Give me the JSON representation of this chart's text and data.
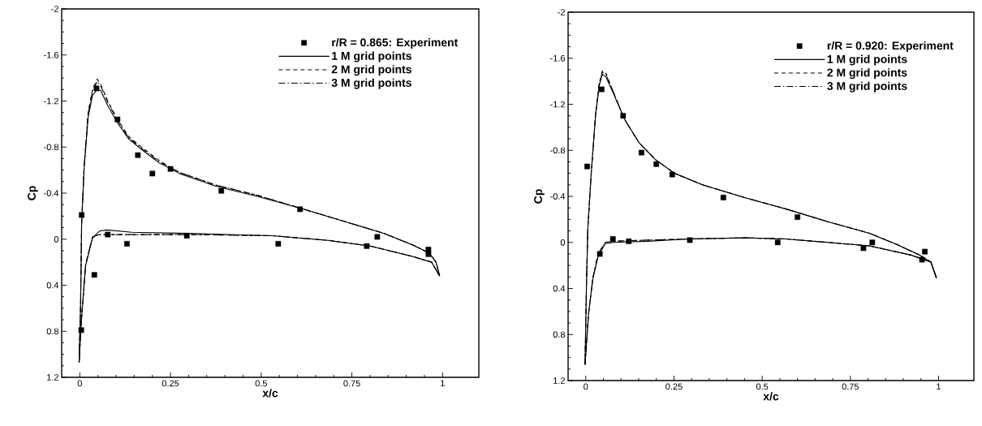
{
  "chart_data": [
    {
      "type": "line",
      "xlabel": "x/c",
      "ylabel": "Cp",
      "xlim": [
        -0.05,
        1.1
      ],
      "ylim": [
        1.2,
        -2
      ],
      "xticks": [
        0,
        0.25,
        0.5,
        0.75,
        1
      ],
      "yticks": [
        -2,
        -1.6,
        -1.2,
        -0.8,
        -0.4,
        0,
        0.4,
        0.8,
        1.2
      ],
      "legend": "top right",
      "series": [
        {
          "name": "r/R = 0.865: Experiment",
          "type": "scatter",
          "marker": "square",
          "color": "#000000",
          "x": [
            0.005,
            0.046,
            0.104,
            0.16,
            0.2,
            0.25,
            0.39,
            0.607,
            0.82,
            0.961,
            0.961,
            0.791,
            0.547,
            0.295,
            0.13,
            0.077,
            0.04,
            0.004
          ],
          "values": [
            -0.21,
            -1.31,
            -1.04,
            -0.73,
            -0.57,
            -0.61,
            -0.42,
            -0.26,
            -0.02,
            0.09,
            0.13,
            0.06,
            0.04,
            -0.03,
            0.04,
            -0.04,
            0.31,
            0.79
          ]
        },
        {
          "name": "1 M grid points",
          "type": "line",
          "line_style": "solid",
          "color": "#000000",
          "x": [
            -0.002,
            0.002,
            0.005,
            0.012,
            0.023,
            0.035,
            0.048,
            0.058,
            0.077,
            0.104,
            0.135,
            0.174,
            0.22,
            0.275,
            0.375,
            0.491,
            0.607,
            0.723,
            0.839,
            0.917,
            0.963,
            0.982,
            0.992
          ],
          "values": [
            1.07,
            0.6,
            -0.13,
            -0.62,
            -1.06,
            -1.25,
            -1.3,
            -1.29,
            -1.16,
            -1.01,
            -0.87,
            -0.77,
            -0.66,
            -0.57,
            -0.46,
            -0.37,
            -0.27,
            -0.16,
            -0.05,
            0.05,
            0.12,
            0.2,
            0.32
          ]
        },
        {
          "type": "line",
          "line_style": "solid",
          "color": "#000000",
          "x": [
            -0.002,
            0.004,
            0.016,
            0.035,
            0.054,
            0.074,
            0.143,
            0.298,
            0.53,
            0.684,
            0.801,
            0.917,
            0.97,
            0.992
          ],
          "values": [
            1.07,
            0.72,
            0.23,
            -0.01,
            -0.07,
            -0.08,
            -0.06,
            -0.05,
            -0.03,
            0.01,
            0.06,
            0.15,
            0.2,
            0.32
          ]
        },
        {
          "name": "2 M grid points",
          "type": "line",
          "line_style": "dashed",
          "color": "#000000",
          "x": [
            -0.002,
            0.002,
            0.005,
            0.012,
            0.023,
            0.035,
            0.048,
            0.058,
            0.077,
            0.104,
            0.135,
            0.174,
            0.22,
            0.275,
            0.375,
            0.491,
            0.607,
            0.723,
            0.839,
            0.917,
            0.963,
            0.982,
            0.992
          ],
          "values": [
            1.07,
            0.6,
            -0.14,
            -0.64,
            -1.1,
            -1.3,
            -1.39,
            -1.34,
            -1.2,
            -1.04,
            -0.89,
            -0.79,
            -0.68,
            -0.58,
            -0.47,
            -0.38,
            -0.27,
            -0.16,
            -0.05,
            0.05,
            0.12,
            0.2,
            0.32
          ]
        },
        {
          "type": "line",
          "line_style": "dashed",
          "color": "#000000",
          "x": [
            -0.002,
            0.004,
            0.016,
            0.035,
            0.054,
            0.074,
            0.143,
            0.298,
            0.53,
            0.684,
            0.801,
            0.917,
            0.97,
            0.992
          ],
          "values": [
            1.07,
            0.72,
            0.22,
            -0.02,
            -0.04,
            -0.04,
            -0.04,
            -0.04,
            -0.03,
            0.01,
            0.06,
            0.15,
            0.2,
            0.32
          ]
        },
        {
          "name": "3 M grid points",
          "type": "line",
          "line_style": "dashdot",
          "color": "#000000",
          "x": [
            -0.002,
            0.002,
            0.005,
            0.012,
            0.023,
            0.035,
            0.048,
            0.058,
            0.077,
            0.104,
            0.135,
            0.174,
            0.22,
            0.275,
            0.375,
            0.491,
            0.607,
            0.723,
            0.839,
            0.917,
            0.963,
            0.982,
            0.992
          ],
          "values": [
            1.07,
            0.6,
            -0.14,
            -0.64,
            -1.09,
            -1.29,
            -1.37,
            -1.33,
            -1.19,
            -1.03,
            -0.88,
            -0.78,
            -0.67,
            -0.58,
            -0.47,
            -0.38,
            -0.27,
            -0.16,
            -0.05,
            0.05,
            0.12,
            0.2,
            0.32
          ]
        },
        {
          "type": "line",
          "line_style": "dashdot",
          "color": "#000000",
          "x": [
            -0.002,
            0.004,
            0.016,
            0.035,
            0.054,
            0.074,
            0.143,
            0.298,
            0.53,
            0.684,
            0.801,
            0.917,
            0.97,
            0.992
          ],
          "values": [
            1.07,
            0.72,
            0.22,
            -0.02,
            -0.04,
            -0.04,
            -0.04,
            -0.04,
            -0.03,
            0.01,
            0.06,
            0.15,
            0.2,
            0.32
          ]
        }
      ]
    },
    {
      "type": "line",
      "xlabel": "x/c",
      "ylabel": "Cp",
      "xlim": [
        -0.05,
        1.1
      ],
      "ylim": [
        1.2,
        -2
      ],
      "xticks": [
        0,
        0.25,
        0.5,
        0.75,
        1
      ],
      "yticks": [
        -2,
        -1.6,
        -1.2,
        -0.8,
        -0.4,
        0,
        0.4,
        0.8,
        1.2
      ],
      "legend": "top right",
      "series": [
        {
          "name": "r/R = 0.920: Experiment",
          "type": "scatter",
          "marker": "square",
          "color": "#000000",
          "x": [
            0.004,
            0.045,
            0.106,
            0.158,
            0.2,
            0.245,
            0.39,
            0.6,
            0.812,
            0.961,
            0.953,
            0.787,
            0.544,
            0.295,
            0.122,
            0.077,
            0.04
          ],
          "values": [
            -0.66,
            -1.33,
            -1.1,
            -0.78,
            -0.68,
            -0.59,
            -0.39,
            -0.22,
            0.0,
            0.08,
            0.15,
            0.05,
            0.0,
            -0.02,
            -0.01,
            -0.03,
            0.1
          ]
        },
        {
          "name": "1 M grid points",
          "type": "line",
          "line_style": "solid",
          "color": "#000000",
          "x": [
            -0.002,
            0.002,
            0.006,
            0.016,
            0.028,
            0.038,
            0.047,
            0.057,
            0.079,
            0.11,
            0.15,
            0.197,
            0.252,
            0.331,
            0.45,
            0.568,
            0.686,
            0.804,
            0.883,
            0.946,
            0.978,
            0.994
          ],
          "values": [
            1.06,
            0.37,
            -0.13,
            -0.62,
            -1.11,
            -1.36,
            -1.46,
            -1.44,
            -1.29,
            -1.07,
            -0.87,
            -0.72,
            -0.6,
            -0.5,
            -0.39,
            -0.29,
            -0.18,
            -0.08,
            0.02,
            0.11,
            0.17,
            0.31
          ]
        },
        {
          "type": "line",
          "line_style": "solid",
          "color": "#000000",
          "x": [
            -0.002,
            0.008,
            0.02,
            0.035,
            0.055,
            0.079,
            0.174,
            0.292,
            0.45,
            0.568,
            0.686,
            0.804,
            0.922,
            0.978,
            0.994
          ],
          "values": [
            1.06,
            0.62,
            0.32,
            0.12,
            0.01,
            0.0,
            -0.01,
            -0.03,
            -0.04,
            -0.03,
            0.0,
            0.03,
            0.11,
            0.17,
            0.31
          ]
        },
        {
          "name": "2 M grid points",
          "type": "line",
          "line_style": "dashed",
          "color": "#000000",
          "x": [
            -0.002,
            0.002,
            0.006,
            0.016,
            0.028,
            0.038,
            0.047,
            0.057,
            0.079,
            0.11,
            0.15,
            0.197,
            0.252,
            0.331,
            0.45,
            0.568,
            0.686,
            0.804,
            0.883,
            0.946,
            0.978,
            0.994
          ],
          "values": [
            1.06,
            0.37,
            -0.13,
            -0.62,
            -1.12,
            -1.38,
            -1.49,
            -1.47,
            -1.3,
            -1.07,
            -0.87,
            -0.72,
            -0.6,
            -0.5,
            -0.39,
            -0.29,
            -0.18,
            -0.08,
            0.02,
            0.11,
            0.17,
            0.31
          ]
        },
        {
          "type": "line",
          "line_style": "dashed",
          "color": "#000000",
          "x": [
            -0.002,
            0.008,
            0.02,
            0.035,
            0.055,
            0.079,
            0.174,
            0.292,
            0.45,
            0.568,
            0.686,
            0.804,
            0.922,
            0.978,
            0.994
          ],
          "values": [
            1.06,
            0.62,
            0.31,
            0.1,
            0.0,
            -0.01,
            -0.02,
            -0.03,
            -0.04,
            -0.03,
            0.0,
            0.03,
            0.11,
            0.17,
            0.31
          ]
        },
        {
          "name": "3 M grid points",
          "type": "line",
          "line_style": "dashdot",
          "color": "#000000",
          "x": [
            -0.002,
            0.002,
            0.006,
            0.016,
            0.028,
            0.038,
            0.047,
            0.057,
            0.079,
            0.11,
            0.15,
            0.197,
            0.252,
            0.331,
            0.45,
            0.568,
            0.686,
            0.804,
            0.883,
            0.946,
            0.978,
            0.994
          ],
          "values": [
            1.06,
            0.37,
            -0.13,
            -0.62,
            -1.11,
            -1.37,
            -1.48,
            -1.46,
            -1.3,
            -1.07,
            -0.87,
            -0.72,
            -0.6,
            -0.5,
            -0.39,
            -0.29,
            -0.18,
            -0.08,
            0.02,
            0.11,
            0.17,
            0.31
          ]
        },
        {
          "type": "line",
          "line_style": "dashdot",
          "color": "#000000",
          "x": [
            -0.002,
            0.008,
            0.02,
            0.035,
            0.055,
            0.079,
            0.174,
            0.292,
            0.45,
            0.568,
            0.686,
            0.804,
            0.922,
            0.978,
            0.994
          ],
          "values": [
            1.06,
            0.62,
            0.31,
            0.1,
            0.0,
            -0.01,
            -0.02,
            -0.03,
            -0.04,
            -0.03,
            0.0,
            0.03,
            0.11,
            0.17,
            0.31
          ]
        }
      ]
    }
  ]
}
